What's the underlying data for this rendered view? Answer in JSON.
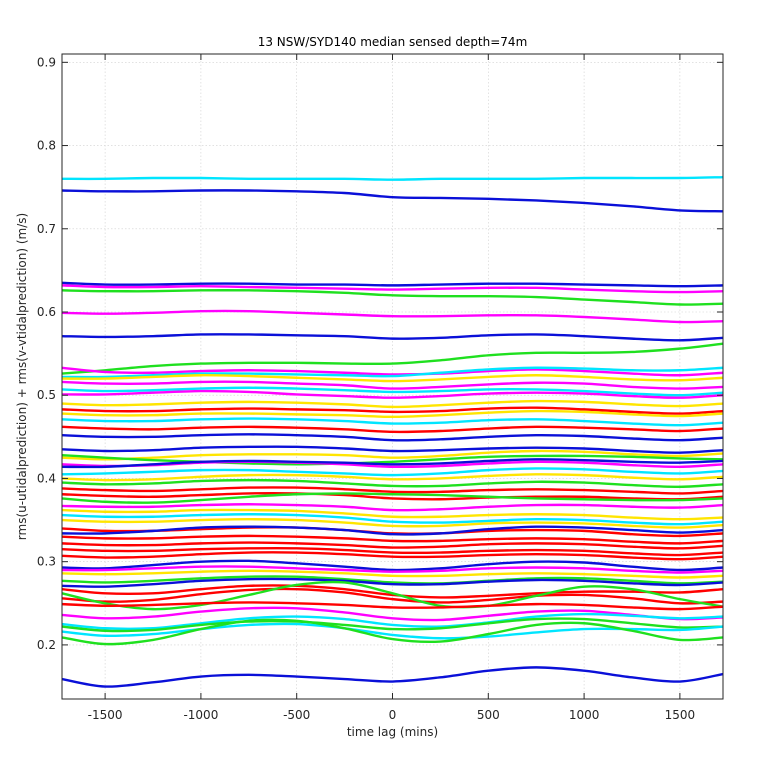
{
  "chart_data": {
    "type": "line",
    "title": "13 NSW/SYD140 median sensed depth=74m",
    "xlabel": "time lag (mins)",
    "ylabel": "rms(u-utidalprediction) + rms(v-vtidalprediction) (m/s)",
    "xlim": [
      -1725,
      1725
    ],
    "ylim": [
      0.135,
      0.91
    ],
    "xticks": [
      -1500,
      -1000,
      -500,
      0,
      500,
      1000,
      1500
    ],
    "yticks": [
      0.2,
      0.3,
      0.4,
      0.5,
      0.6,
      0.7,
      0.8,
      0.9
    ],
    "grid": true,
    "x": [
      -1725,
      -1500,
      -1250,
      -1000,
      -750,
      -500,
      -250,
      0,
      250,
      500,
      750,
      1000,
      1250,
      1500,
      1725
    ],
    "series": [
      {
        "color": "#00e5ff",
        "values": [
          0.76,
          0.76,
          0.761,
          0.761,
          0.76,
          0.76,
          0.76,
          0.759,
          0.76,
          0.76,
          0.76,
          0.761,
          0.761,
          0.761,
          0.762
        ]
      },
      {
        "color": "#0a10d8",
        "values": [
          0.746,
          0.745,
          0.745,
          0.746,
          0.746,
          0.745,
          0.743,
          0.738,
          0.737,
          0.736,
          0.734,
          0.731,
          0.727,
          0.722,
          0.721
        ]
      },
      {
        "color": "#0a10d8",
        "values": [
          0.635,
          0.633,
          0.633,
          0.634,
          0.634,
          0.633,
          0.633,
          0.632,
          0.633,
          0.634,
          0.634,
          0.633,
          0.632,
          0.631,
          0.632
        ]
      },
      {
        "color": "#ff00ff",
        "values": [
          0.632,
          0.63,
          0.63,
          0.631,
          0.63,
          0.629,
          0.628,
          0.627,
          0.628,
          0.629,
          0.629,
          0.627,
          0.625,
          0.624,
          0.625
        ]
      },
      {
        "color": "#1fe01f",
        "values": [
          0.626,
          0.625,
          0.625,
          0.626,
          0.626,
          0.625,
          0.623,
          0.62,
          0.619,
          0.619,
          0.618,
          0.615,
          0.612,
          0.609,
          0.61
        ]
      },
      {
        "color": "#ff00ff",
        "values": [
          0.599,
          0.598,
          0.599,
          0.601,
          0.601,
          0.599,
          0.597,
          0.595,
          0.595,
          0.596,
          0.596,
          0.594,
          0.591,
          0.588,
          0.589
        ]
      },
      {
        "color": "#0a10d8",
        "values": [
          0.571,
          0.57,
          0.571,
          0.573,
          0.573,
          0.572,
          0.571,
          0.568,
          0.569,
          0.572,
          0.573,
          0.571,
          0.568,
          0.566,
          0.569
        ]
      },
      {
        "color": "#1fe01f",
        "values": [
          0.526,
          0.53,
          0.535,
          0.538,
          0.539,
          0.539,
          0.538,
          0.538,
          0.542,
          0.548,
          0.551,
          0.551,
          0.552,
          0.556,
          0.562
        ]
      },
      {
        "color": "#ff00ff",
        "values": [
          0.533,
          0.528,
          0.527,
          0.529,
          0.53,
          0.529,
          0.527,
          0.525,
          0.526,
          0.529,
          0.531,
          0.529,
          0.526,
          0.524,
          0.527
        ]
      },
      {
        "color": "#00e5ff",
        "values": [
          0.522,
          0.522,
          0.524,
          0.526,
          0.526,
          0.525,
          0.524,
          0.523,
          0.527,
          0.531,
          0.533,
          0.532,
          0.53,
          0.53,
          0.533
        ]
      },
      {
        "color": "#ffe500",
        "values": [
          0.52,
          0.52,
          0.522,
          0.524,
          0.523,
          0.521,
          0.519,
          0.517,
          0.519,
          0.522,
          0.524,
          0.522,
          0.519,
          0.518,
          0.521
        ]
      },
      {
        "color": "#ff00ff",
        "values": [
          0.516,
          0.514,
          0.514,
          0.516,
          0.516,
          0.514,
          0.512,
          0.508,
          0.51,
          0.513,
          0.515,
          0.514,
          0.51,
          0.508,
          0.51
        ]
      },
      {
        "color": "#00e5ff",
        "values": [
          0.507,
          0.505,
          0.506,
          0.508,
          0.509,
          0.508,
          0.506,
          0.504,
          0.505,
          0.507,
          0.507,
          0.505,
          0.502,
          0.5,
          0.503
        ]
      },
      {
        "color": "#ff00ff",
        "values": [
          0.501,
          0.501,
          0.503,
          0.505,
          0.504,
          0.501,
          0.499,
          0.497,
          0.499,
          0.502,
          0.503,
          0.502,
          0.499,
          0.497,
          0.5
        ]
      },
      {
        "color": "#ffe500",
        "values": [
          0.49,
          0.488,
          0.489,
          0.491,
          0.492,
          0.491,
          0.489,
          0.486,
          0.488,
          0.491,
          0.493,
          0.492,
          0.489,
          0.487,
          0.49
        ]
      },
      {
        "color": "#ff0000",
        "values": [
          0.483,
          0.481,
          0.481,
          0.483,
          0.484,
          0.483,
          0.482,
          0.48,
          0.481,
          0.484,
          0.485,
          0.483,
          0.48,
          0.478,
          0.481
        ]
      },
      {
        "color": "#ffe500",
        "values": [
          0.478,
          0.476,
          0.476,
          0.478,
          0.478,
          0.477,
          0.476,
          0.474,
          0.476,
          0.479,
          0.481,
          0.48,
          0.477,
          0.475,
          0.478
        ]
      },
      {
        "color": "#00e5ff",
        "values": [
          0.471,
          0.469,
          0.469,
          0.471,
          0.472,
          0.471,
          0.469,
          0.466,
          0.467,
          0.47,
          0.471,
          0.469,
          0.466,
          0.464,
          0.467
        ]
      },
      {
        "color": "#ff0000",
        "values": [
          0.462,
          0.46,
          0.459,
          0.461,
          0.462,
          0.461,
          0.459,
          0.456,
          0.457,
          0.46,
          0.462,
          0.461,
          0.459,
          0.457,
          0.46
        ]
      },
      {
        "color": "#0a10d8",
        "values": [
          0.452,
          0.45,
          0.45,
          0.452,
          0.453,
          0.452,
          0.45,
          0.446,
          0.447,
          0.45,
          0.452,
          0.451,
          0.448,
          0.446,
          0.449
        ]
      },
      {
        "color": "#0a10d8",
        "values": [
          0.435,
          0.433,
          0.434,
          0.437,
          0.438,
          0.438,
          0.436,
          0.433,
          0.434,
          0.436,
          0.437,
          0.436,
          0.433,
          0.431,
          0.434
        ]
      },
      {
        "color": "#ffe500",
        "values": [
          0.425,
          0.423,
          0.425,
          0.428,
          0.429,
          0.429,
          0.428,
          0.425,
          0.427,
          0.431,
          0.433,
          0.432,
          0.429,
          0.427,
          0.43
        ]
      },
      {
        "color": "#1fe01f",
        "values": [
          0.428,
          0.425,
          0.422,
          0.42,
          0.418,
          0.417,
          0.418,
          0.42,
          0.423,
          0.426,
          0.427,
          0.427,
          0.426,
          0.424,
          0.423
        ]
      },
      {
        "color": "#ff00ff",
        "values": [
          0.417,
          0.415,
          0.416,
          0.419,
          0.42,
          0.419,
          0.417,
          0.414,
          0.415,
          0.418,
          0.42,
          0.419,
          0.416,
          0.414,
          0.417
        ]
      },
      {
        "color": "#0a10d8",
        "values": [
          0.414,
          0.414,
          0.417,
          0.42,
          0.421,
          0.42,
          0.419,
          0.417,
          0.418,
          0.421,
          0.423,
          0.422,
          0.42,
          0.419,
          0.421
        ]
      },
      {
        "color": "#00e5ff",
        "values": [
          0.405,
          0.406,
          0.408,
          0.41,
          0.41,
          0.408,
          0.406,
          0.404,
          0.406,
          0.41,
          0.412,
          0.411,
          0.408,
          0.406,
          0.409
        ]
      },
      {
        "color": "#ffe500",
        "values": [
          0.4,
          0.398,
          0.399,
          0.402,
          0.404,
          0.404,
          0.402,
          0.399,
          0.4,
          0.403,
          0.405,
          0.404,
          0.401,
          0.399,
          0.402
        ]
      },
      {
        "color": "#1fe01f",
        "values": [
          0.395,
          0.393,
          0.394,
          0.397,
          0.398,
          0.397,
          0.394,
          0.391,
          0.391,
          0.394,
          0.396,
          0.395,
          0.392,
          0.39,
          0.393
        ]
      },
      {
        "color": "#ff0000",
        "values": [
          0.388,
          0.386,
          0.385,
          0.387,
          0.389,
          0.389,
          0.387,
          0.384,
          0.384,
          0.386,
          0.387,
          0.386,
          0.384,
          0.382,
          0.385
        ]
      },
      {
        "color": "#ff0000",
        "values": [
          0.381,
          0.379,
          0.378,
          0.38,
          0.382,
          0.382,
          0.38,
          0.376,
          0.375,
          0.377,
          0.378,
          0.378,
          0.376,
          0.375,
          0.378
        ]
      },
      {
        "color": "#1fe01f",
        "values": [
          0.376,
          0.372,
          0.371,
          0.374,
          0.378,
          0.381,
          0.382,
          0.381,
          0.38,
          0.378,
          0.376,
          0.375,
          0.374,
          0.374,
          0.376
        ]
      },
      {
        "color": "#ff00ff",
        "values": [
          0.367,
          0.366,
          0.366,
          0.368,
          0.369,
          0.368,
          0.366,
          0.362,
          0.363,
          0.366,
          0.368,
          0.368,
          0.366,
          0.365,
          0.368
        ]
      },
      {
        "color": "#ffe500",
        "values": [
          0.362,
          0.36,
          0.36,
          0.362,
          0.362,
          0.361,
          0.358,
          0.354,
          0.354,
          0.356,
          0.357,
          0.356,
          0.353,
          0.351,
          0.353
        ]
      },
      {
        "color": "#00e5ff",
        "values": [
          0.356,
          0.354,
          0.354,
          0.356,
          0.357,
          0.356,
          0.353,
          0.348,
          0.347,
          0.349,
          0.351,
          0.35,
          0.347,
          0.345,
          0.348
        ]
      },
      {
        "color": "#ffe500",
        "values": [
          0.35,
          0.348,
          0.348,
          0.35,
          0.351,
          0.35,
          0.347,
          0.343,
          0.343,
          0.346,
          0.347,
          0.346,
          0.343,
          0.341,
          0.344
        ]
      },
      {
        "color": "#ff0000",
        "values": [
          0.34,
          0.337,
          0.337,
          0.339,
          0.341,
          0.341,
          0.338,
          0.334,
          0.334,
          0.337,
          0.338,
          0.337,
          0.333,
          0.331,
          0.334
        ]
      },
      {
        "color": "#0a10d8",
        "values": [
          0.334,
          0.334,
          0.337,
          0.341,
          0.342,
          0.341,
          0.338,
          0.333,
          0.334,
          0.339,
          0.342,
          0.341,
          0.338,
          0.335,
          0.338
        ]
      },
      {
        "color": "#ff0000",
        "values": [
          0.33,
          0.328,
          0.328,
          0.33,
          0.331,
          0.33,
          0.328,
          0.325,
          0.325,
          0.327,
          0.328,
          0.327,
          0.324,
          0.322,
          0.325
        ]
      },
      {
        "color": "#ff0000",
        "values": [
          0.322,
          0.32,
          0.32,
          0.322,
          0.323,
          0.322,
          0.32,
          0.317,
          0.318,
          0.321,
          0.322,
          0.321,
          0.318,
          0.316,
          0.319
        ]
      },
      {
        "color": "#ff0000",
        "values": [
          0.315,
          0.313,
          0.313,
          0.315,
          0.316,
          0.316,
          0.314,
          0.311,
          0.311,
          0.313,
          0.314,
          0.313,
          0.31,
          0.308,
          0.311
        ]
      },
      {
        "color": "#ff0000",
        "values": [
          0.307,
          0.305,
          0.306,
          0.309,
          0.311,
          0.311,
          0.309,
          0.306,
          0.306,
          0.308,
          0.309,
          0.308,
          0.305,
          0.303,
          0.306
        ]
      },
      {
        "color": "#0a10d8",
        "values": [
          0.293,
          0.292,
          0.296,
          0.3,
          0.301,
          0.298,
          0.294,
          0.29,
          0.292,
          0.297,
          0.3,
          0.299,
          0.294,
          0.29,
          0.293
        ]
      },
      {
        "color": "#ff00ff",
        "values": [
          0.29,
          0.29,
          0.292,
          0.294,
          0.294,
          0.292,
          0.29,
          0.288,
          0.289,
          0.292,
          0.293,
          0.292,
          0.289,
          0.287,
          0.289
        ]
      },
      {
        "color": "#ffe500",
        "values": [
          0.286,
          0.285,
          0.286,
          0.288,
          0.289,
          0.288,
          0.286,
          0.283,
          0.283,
          0.285,
          0.286,
          0.285,
          0.283,
          0.281,
          0.283
        ]
      },
      {
        "color": "#1fe01f",
        "values": [
          0.277,
          0.275,
          0.277,
          0.28,
          0.282,
          0.282,
          0.279,
          0.275,
          0.274,
          0.277,
          0.28,
          0.28,
          0.277,
          0.274,
          0.276
        ]
      },
      {
        "color": "#0a10d8",
        "values": [
          0.271,
          0.27,
          0.273,
          0.277,
          0.279,
          0.279,
          0.277,
          0.273,
          0.273,
          0.276,
          0.278,
          0.277,
          0.274,
          0.272,
          0.275
        ]
      },
      {
        "color": "#ff0000",
        "values": [
          0.267,
          0.262,
          0.262,
          0.267,
          0.271,
          0.271,
          0.267,
          0.26,
          0.257,
          0.259,
          0.262,
          0.264,
          0.264,
          0.263,
          0.267
        ]
      },
      {
        "color": "#ff0000",
        "values": [
          0.256,
          0.252,
          0.254,
          0.261,
          0.266,
          0.267,
          0.263,
          0.255,
          0.251,
          0.254,
          0.259,
          0.26,
          0.256,
          0.25,
          0.252
        ]
      },
      {
        "color": "#1fe01f",
        "values": [
          0.262,
          0.25,
          0.243,
          0.248,
          0.26,
          0.272,
          0.275,
          0.262,
          0.247,
          0.247,
          0.259,
          0.27,
          0.267,
          0.255,
          0.246
        ]
      },
      {
        "color": "#ff0000",
        "values": [
          0.249,
          0.247,
          0.248,
          0.25,
          0.251,
          0.25,
          0.248,
          0.245,
          0.245,
          0.247,
          0.249,
          0.248,
          0.245,
          0.243,
          0.246
        ]
      },
      {
        "color": "#ff00ff",
        "values": [
          0.236,
          0.232,
          0.234,
          0.24,
          0.244,
          0.244,
          0.239,
          0.232,
          0.23,
          0.235,
          0.24,
          0.241,
          0.236,
          0.231,
          0.233
        ]
      },
      {
        "color": "#00e5ff",
        "values": [
          0.225,
          0.22,
          0.22,
          0.226,
          0.232,
          0.234,
          0.231,
          0.224,
          0.222,
          0.227,
          0.234,
          0.237,
          0.235,
          0.232,
          0.234
        ]
      },
      {
        "color": "#1fe01f",
        "values": [
          0.222,
          0.217,
          0.218,
          0.224,
          0.228,
          0.228,
          0.224,
          0.219,
          0.22,
          0.226,
          0.231,
          0.231,
          0.226,
          0.221,
          0.222
        ]
      },
      {
        "color": "#00e5ff",
        "values": [
          0.216,
          0.211,
          0.213,
          0.219,
          0.224,
          0.225,
          0.22,
          0.212,
          0.208,
          0.21,
          0.215,
          0.219,
          0.219,
          0.218,
          0.222
        ]
      },
      {
        "color": "#1fe01f",
        "values": [
          0.209,
          0.201,
          0.206,
          0.219,
          0.229,
          0.229,
          0.22,
          0.207,
          0.204,
          0.213,
          0.224,
          0.226,
          0.217,
          0.206,
          0.209
        ]
      },
      {
        "color": "#0a10d8",
        "values": [
          0.159,
          0.15,
          0.155,
          0.162,
          0.164,
          0.162,
          0.159,
          0.156,
          0.161,
          0.169,
          0.173,
          0.169,
          0.161,
          0.156,
          0.165
        ]
      }
    ]
  }
}
